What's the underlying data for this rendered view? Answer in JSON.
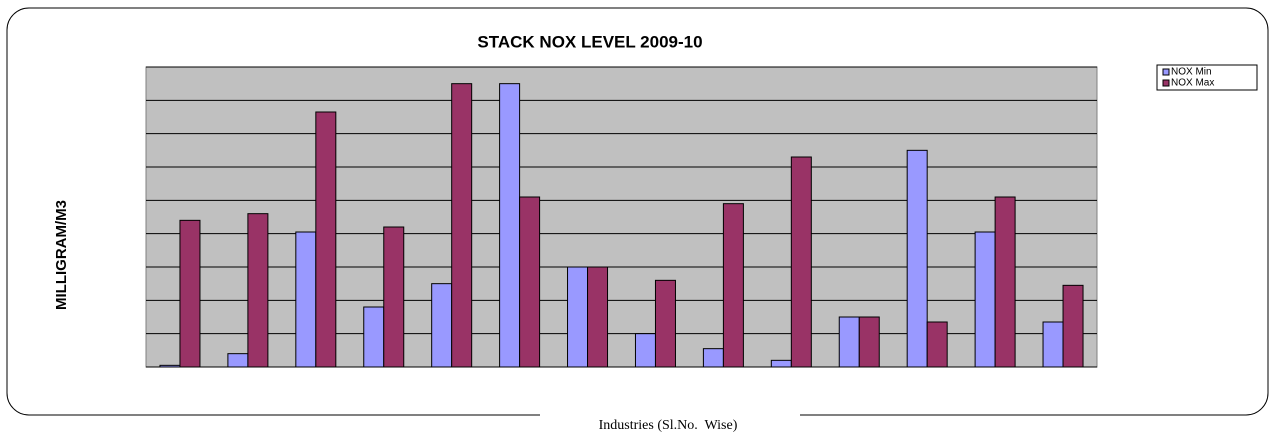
{
  "chart_data": {
    "type": "bar",
    "title": "STACK NOX LEVEL 2009-10",
    "y_label": "MILLIGRAM/M3",
    "x_label": "Industries (Sl.No.  Wise)",
    "categories": [
      null,
      null,
      null,
      null,
      null,
      null,
      null,
      null,
      null,
      null,
      null,
      null,
      null,
      null
    ],
    "series": [
      {
        "name": "NOX Min",
        "color": "#9999ff",
        "values": [
          0.05,
          0.4,
          4.05,
          1.8,
          2.5,
          8.5,
          3.0,
          1.0,
          0.55,
          0.2,
          1.5,
          6.5,
          4.05,
          1.35
        ]
      },
      {
        "name": "NOX Max",
        "color": "#993366",
        "values": [
          4.4,
          4.6,
          7.65,
          4.2,
          8.5,
          5.1,
          3.0,
          2.6,
          4.9,
          6.3,
          1.5,
          1.35,
          5.1,
          2.45
        ]
      }
    ],
    "ylim": [
      0,
      9
    ],
    "yticks": [
      0,
      1,
      2,
      3,
      4,
      5,
      6,
      7,
      8,
      9
    ],
    "tick_labels": false,
    "grid": true,
    "legend": "top-right"
  }
}
